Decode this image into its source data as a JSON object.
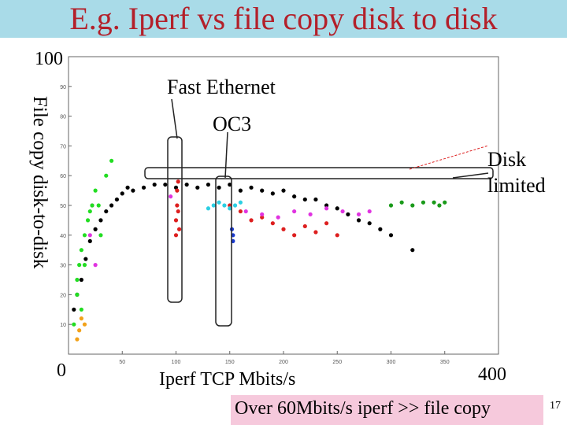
{
  "slide": {
    "title": "E.g. Iperf vs file copy disk to disk",
    "footer": "Over 60Mbits/s iperf >> file copy",
    "page_number": "17",
    "colors": {
      "title_bar": "#a9dbe8",
      "title_text": "#b3202a",
      "footer_box": "#f6c9dc"
    }
  },
  "chart_data": {
    "type": "scatter",
    "xlabel": "Iperf  TCP Mbits/s",
    "ylabel": "File copy disk-to-disk",
    "xlim": [
      0,
      400
    ],
    "ylim": [
      0,
      100
    ],
    "x_ticks": [
      "0",
      "50",
      "100",
      "150",
      "200",
      "250",
      "300",
      "350",
      "400"
    ],
    "y_ticks": [
      "0",
      "10",
      "20",
      "30",
      "40",
      "50",
      "60",
      "70",
      "80",
      "90",
      "100"
    ],
    "big_labels": {
      "y_top": "100",
      "y_origin": "0",
      "x_right": "400"
    },
    "annotations": {
      "fast_ethernet": "Fast Ethernet",
      "oc3": "OC3",
      "disk_limited": "Disk\nlimited"
    },
    "grid": false,
    "series": [
      {
        "color": "#000000",
        "x": [
          5,
          8,
          12,
          16,
          20,
          25,
          30,
          35,
          40,
          45,
          50,
          55,
          60,
          70,
          80,
          90,
          100,
          110,
          120,
          130,
          140,
          150,
          160,
          170,
          180,
          190,
          200,
          210,
          220,
          230,
          240,
          250,
          260,
          270,
          280,
          290,
          300,
          320
        ],
        "y": [
          15,
          20,
          25,
          32,
          38,
          42,
          45,
          48,
          50,
          52,
          54,
          56,
          55,
          56,
          57,
          57,
          56,
          57,
          56,
          57,
          56,
          57,
          55,
          56,
          55,
          54,
          55,
          53,
          52,
          52,
          50,
          49,
          47,
          45,
          44,
          42,
          40,
          35
        ]
      },
      {
        "color": "#dd1f1f",
        "x": [
          100,
          100,
          101,
          101,
          102,
          102,
          103,
          150,
          160,
          170,
          180,
          190,
          200,
          210,
          220,
          230,
          240,
          250
        ],
        "y": [
          40,
          45,
          50,
          55,
          58,
          48,
          42,
          50,
          48,
          45,
          46,
          44,
          42,
          40,
          43,
          41,
          44,
          40
        ]
      },
      {
        "color": "#2ccfe3",
        "x": [
          130,
          135,
          140,
          145,
          150,
          155,
          160
        ],
        "y": [
          49,
          50,
          51,
          50,
          49,
          50,
          51
        ]
      },
      {
        "color": "#e033e0",
        "x": [
          95,
          165,
          180,
          195,
          210,
          225,
          240,
          255,
          270,
          280,
          20,
          22,
          25
        ],
        "y": [
          53,
          48,
          47,
          46,
          48,
          47,
          49,
          48,
          47,
          48,
          40,
          50,
          30
        ]
      },
      {
        "color": "#1a9a1a",
        "x": [
          300,
          310,
          320,
          330,
          340,
          345,
          350
        ],
        "y": [
          50,
          51,
          50,
          51,
          51,
          50,
          51
        ]
      },
      {
        "color": "#22dd22",
        "x": [
          5,
          8,
          10,
          12,
          15,
          18,
          20,
          22,
          25,
          28,
          30,
          35,
          40,
          8,
          12,
          15
        ],
        "y": [
          10,
          20,
          30,
          35,
          40,
          45,
          48,
          50,
          55,
          50,
          40,
          60,
          65,
          25,
          15,
          30
        ]
      },
      {
        "color": "#1a3ad0",
        "x": [
          152,
          153,
          153
        ],
        "y": [
          42,
          40,
          38
        ]
      },
      {
        "color": "#f2a21a",
        "x": [
          8,
          10,
          12,
          15
        ],
        "y": [
          5,
          8,
          12,
          10
        ]
      }
    ]
  }
}
